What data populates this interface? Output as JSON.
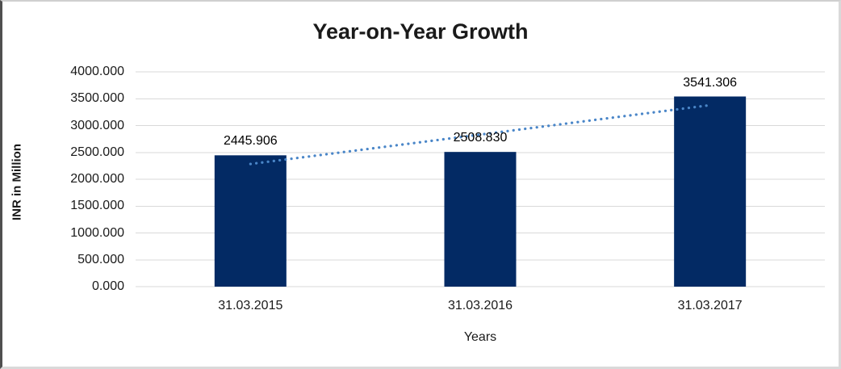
{
  "chart_data": {
    "type": "bar",
    "title": "Year-on-Year Growth",
    "xlabel": "Years",
    "ylabel": "INR in Million",
    "categories": [
      "31.03.2015",
      "31.03.2016",
      "31.03.2017"
    ],
    "values": [
      2445.906,
      2508.83,
      3541.306
    ],
    "data_labels": [
      "2445.906",
      "2508.830",
      "3541.306"
    ],
    "ylim": [
      0,
      4000
    ],
    "ytick_step": 500,
    "ytick_labels": [
      "0.000",
      "500.000",
      "1000.000",
      "1500.000",
      "2000.000",
      "2500.000",
      "3000.000",
      "3500.000",
      "4000.000"
    ],
    "grid": true,
    "legend": "none",
    "trendline": {
      "type": "linear",
      "style": "dotted"
    },
    "colors": {
      "bar": "#032a64",
      "gridline": "#d9d9d9",
      "axis_line": "#d9d9d9",
      "trendline": "#4a86c8",
      "text": "#1a1a1a",
      "background": "#ffffff"
    }
  }
}
